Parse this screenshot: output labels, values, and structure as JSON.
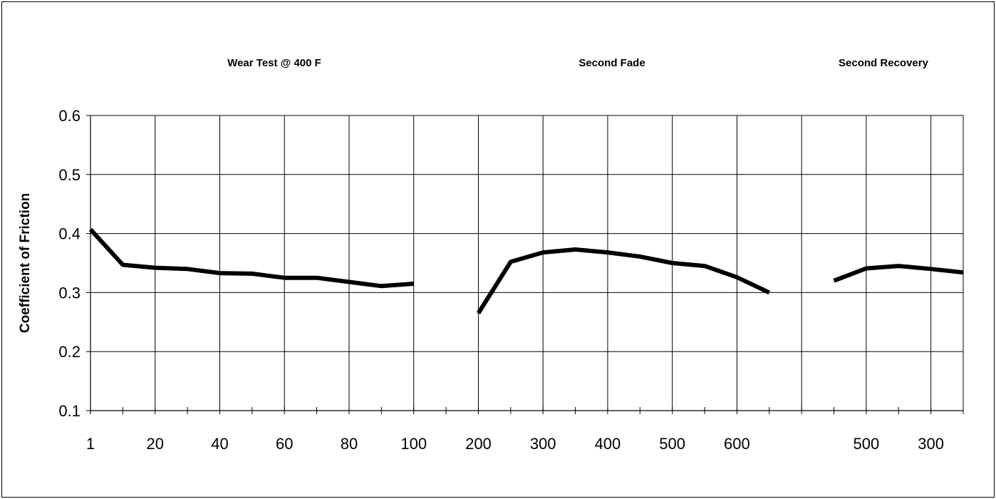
{
  "chart_data": {
    "type": "line",
    "title": "",
    "xlabel": "",
    "ylabel": "Coefficient of Friction",
    "ylim": [
      0.1,
      0.6
    ],
    "yticks": [
      "0.6",
      "0.5",
      "0.4",
      "0.3",
      "0.2",
      "0.1"
    ],
    "grid": true,
    "legend": "none",
    "line_color": "#000000",
    "section_labels": [
      "Wear Test @ 400 F",
      "Second Fade",
      "Second Recovery"
    ],
    "x_tick_labels": [
      "1",
      "20",
      "40",
      "60",
      "80",
      "100",
      "200",
      "300",
      "400",
      "500",
      "600",
      "500",
      "300"
    ],
    "series": [
      {
        "segment": "Wear Test @ 400 F",
        "x": [
          1,
          10,
          20,
          30,
          40,
          50,
          60,
          70,
          80,
          90,
          100
        ],
        "y": [
          0.407,
          0.347,
          0.342,
          0.34,
          0.333,
          0.332,
          0.325,
          0.325,
          0.318,
          0.311,
          0.315
        ]
      },
      {
        "segment": "Second Fade",
        "x": [
          200,
          250,
          300,
          350,
          400,
          450,
          500,
          550,
          600,
          650
        ],
        "y": [
          0.265,
          0.352,
          0.368,
          0.373,
          0.368,
          0.361,
          0.35,
          0.345,
          0.326,
          0.3
        ]
      },
      {
        "segment": "Second Recovery",
        "x": [
          600,
          500,
          400,
          300,
          200
        ],
        "y": [
          0.32,
          0.341,
          0.345,
          0.34,
          0.334
        ]
      }
    ]
  }
}
